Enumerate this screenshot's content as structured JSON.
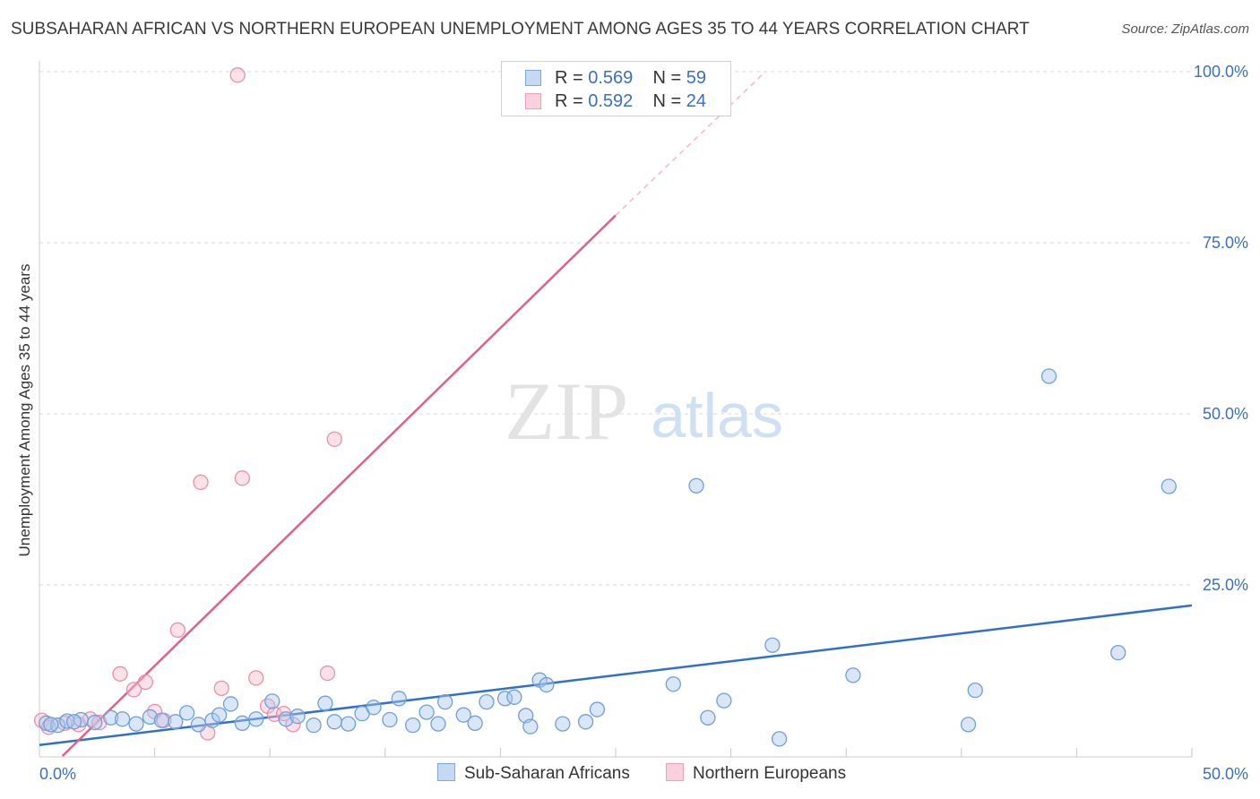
{
  "title": "SUBSAHARAN AFRICAN VS NORTHERN EUROPEAN UNEMPLOYMENT AMONG AGES 35 TO 44 YEARS CORRELATION CHART",
  "source": "Source: ZipAtlas.com",
  "legend": {
    "blue": {
      "r_label": "R = ",
      "r_value": "0.569",
      "n_label": "N = ",
      "n_value": "59"
    },
    "pink": {
      "r_label": "R = ",
      "r_value": "0.592",
      "n_label": "N = ",
      "n_value": "24"
    }
  },
  "watermark": {
    "zip": "ZIP",
    "atlas": "atlas"
  },
  "colors": {
    "blue_fill": "#aac8ee",
    "blue_stroke": "#6f9fd8",
    "blue_line": "#2f6fce",
    "pink_fill": "#f6bfcf",
    "pink_stroke": "#e890aa",
    "pink_line": "#e0608a",
    "tick_label": "#3a6fc4",
    "grid": "#d8d8d8"
  },
  "chart_data": {
    "type": "scatter",
    "title": "SUBSAHARAN AFRICAN VS NORTHERN EUROPEAN UNEMPLOYMENT AMONG AGES 35 TO 44 YEARS CORRELATION CHART",
    "xlabel": "",
    "ylabel": "Unemployment Among Ages 35 to 44 years",
    "xlim": [
      0,
      50
    ],
    "ylim": [
      0,
      100
    ],
    "x_tick_labels": [
      "0.0%",
      "50.0%"
    ],
    "y_ticks": [
      25,
      50,
      75,
      100
    ],
    "y_tick_labels": [
      "25.0%",
      "50.0%",
      "75.0%",
      "100.0%"
    ],
    "grid": true,
    "legend_bottom": [
      "Sub-Saharan Africans",
      "Northern Europeans"
    ],
    "series": [
      {
        "name": "Sub-Saharan Africans",
        "points": [
          [
            0.3,
            4.8
          ],
          [
            0.8,
            4.5
          ],
          [
            1.2,
            5.1
          ],
          [
            1.8,
            5.3
          ],
          [
            2.4,
            4.9
          ],
          [
            3.1,
            5.6
          ],
          [
            3.6,
            5.4
          ],
          [
            4.2,
            4.7
          ],
          [
            4.8,
            5.7
          ],
          [
            5.3,
            5.2
          ],
          [
            5.9,
            5.0
          ],
          [
            6.4,
            6.3
          ],
          [
            6.9,
            4.6
          ],
          [
            7.5,
            5.2
          ],
          [
            7.8,
            6.0
          ],
          [
            8.3,
            7.6
          ],
          [
            8.8,
            4.8
          ],
          [
            9.4,
            5.4
          ],
          [
            10.1,
            8.0
          ],
          [
            10.7,
            5.4
          ],
          [
            11.2,
            5.8
          ],
          [
            11.9,
            4.5
          ],
          [
            12.4,
            7.7
          ],
          [
            12.8,
            5.0
          ],
          [
            13.4,
            4.7
          ],
          [
            14.0,
            6.2
          ],
          [
            14.5,
            7.1
          ],
          [
            15.2,
            5.3
          ],
          [
            15.6,
            8.4
          ],
          [
            16.2,
            4.5
          ],
          [
            16.8,
            6.4
          ],
          [
            17.3,
            4.7
          ],
          [
            17.6,
            7.9
          ],
          [
            18.4,
            6.0
          ],
          [
            18.9,
            4.8
          ],
          [
            19.4,
            7.9
          ],
          [
            20.2,
            8.4
          ],
          [
            20.6,
            8.6
          ],
          [
            21.1,
            5.9
          ],
          [
            21.3,
            4.3
          ],
          [
            21.7,
            11.1
          ],
          [
            22.0,
            10.4
          ],
          [
            22.7,
            4.7
          ],
          [
            23.7,
            5.0
          ],
          [
            24.2,
            6.8
          ],
          [
            27.5,
            10.5
          ],
          [
            28.5,
            39.5
          ],
          [
            29.0,
            5.6
          ],
          [
            29.7,
            8.1
          ],
          [
            31.8,
            16.2
          ],
          [
            32.1,
            2.5
          ],
          [
            35.3,
            11.8
          ],
          [
            40.3,
            4.6
          ],
          [
            40.6,
            9.6
          ],
          [
            43.8,
            55.5
          ],
          [
            46.8,
            15.1
          ],
          [
            49.0,
            39.4
          ],
          [
            0.5,
            4.6
          ],
          [
            1.5,
            5.0
          ]
        ]
      },
      {
        "name": "Northern Europeans",
        "points": [
          [
            0.1,
            5.2
          ],
          [
            0.4,
            4.2
          ],
          [
            1.1,
            4.8
          ],
          [
            1.7,
            4.6
          ],
          [
            2.2,
            5.4
          ],
          [
            2.6,
            4.9
          ],
          [
            3.5,
            12.0
          ],
          [
            4.1,
            9.7
          ],
          [
            4.6,
            10.8
          ],
          [
            5.0,
            6.5
          ],
          [
            5.4,
            5.2
          ],
          [
            6.0,
            18.4
          ],
          [
            7.0,
            40.0
          ],
          [
            7.3,
            3.4
          ],
          [
            7.9,
            9.9
          ],
          [
            8.6,
            99.5
          ],
          [
            8.8,
            40.6
          ],
          [
            9.4,
            11.4
          ],
          [
            9.9,
            7.3
          ],
          [
            10.2,
            6.1
          ],
          [
            10.6,
            6.2
          ],
          [
            11.0,
            4.6
          ],
          [
            12.5,
            12.1
          ],
          [
            12.8,
            46.3
          ]
        ]
      }
    ],
    "trendlines": [
      {
        "series": "Sub-Saharan Africans",
        "x": [
          0,
          50
        ],
        "y": [
          1.6,
          22.0
        ]
      },
      {
        "series": "Northern Europeans",
        "x": [
          1.0,
          25.0
        ],
        "y": [
          0,
          79.0
        ],
        "extends_dashed_to": [
          31.5,
          100
        ]
      }
    ]
  }
}
